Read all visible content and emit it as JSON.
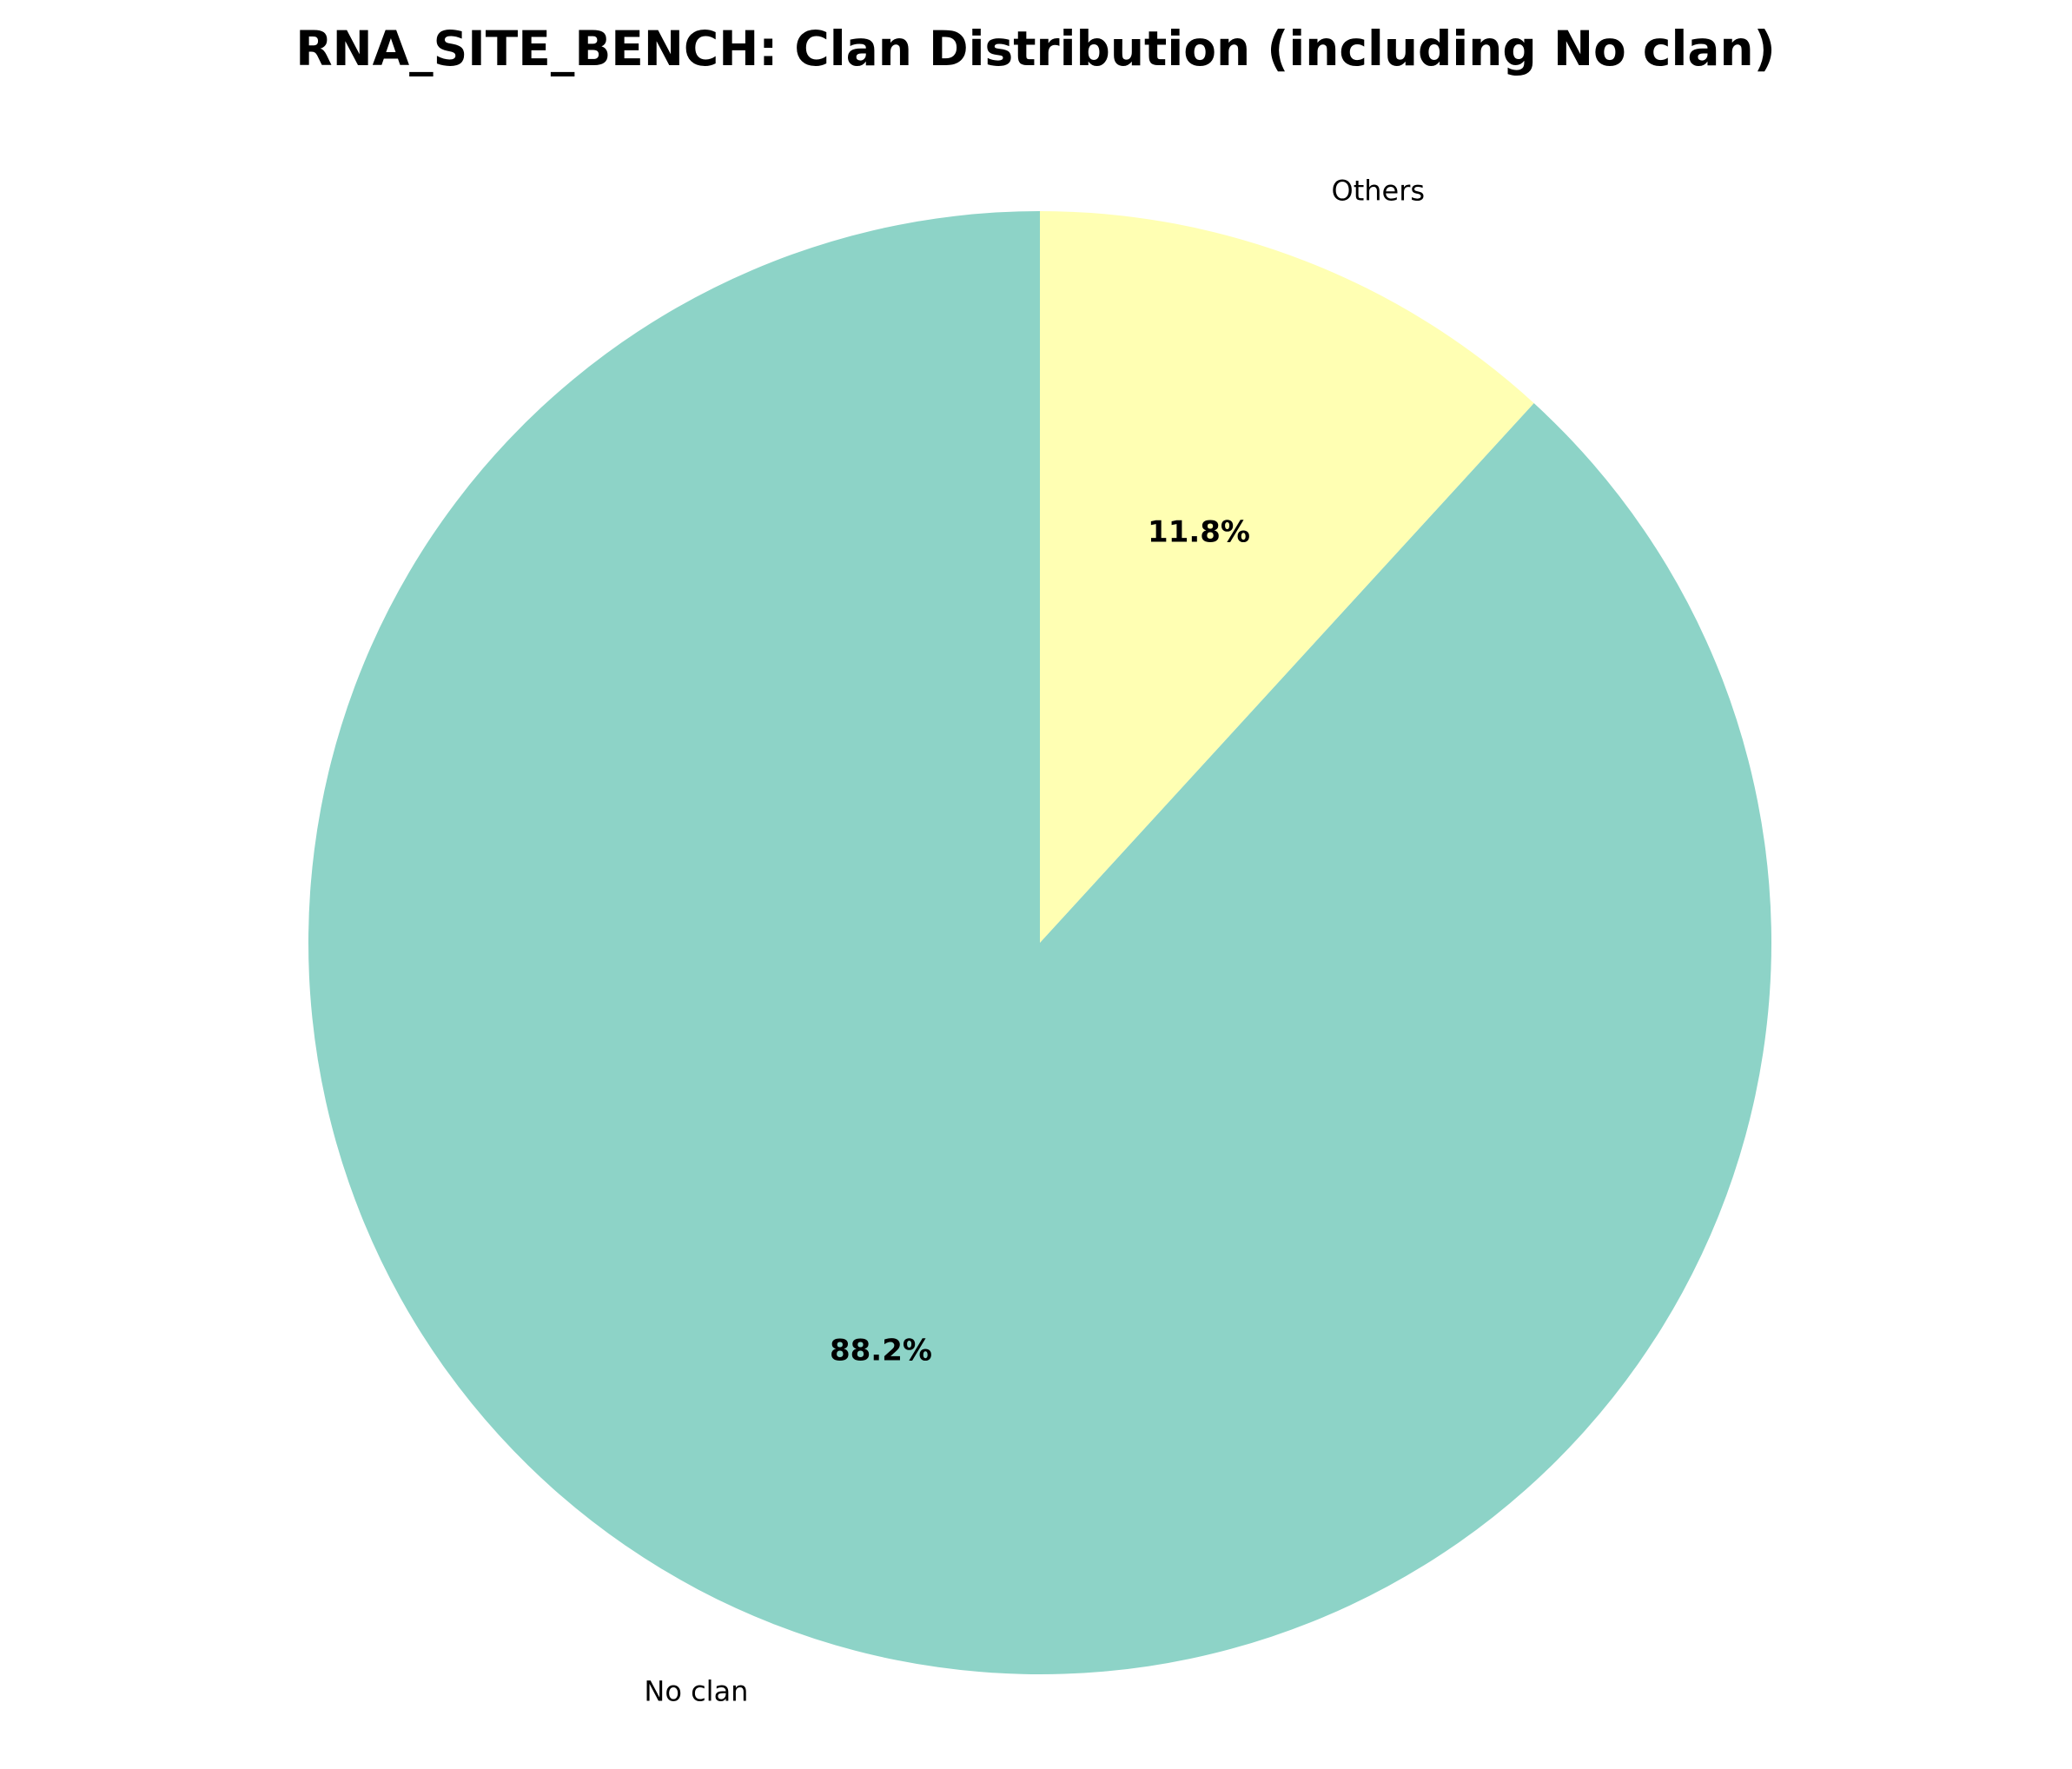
{
  "chart_data": {
    "type": "pie",
    "title": "RNA_SITE_BENCH: Clan Distribution (including No clan)",
    "categories": [
      "No clan",
      "Others"
    ],
    "values": [
      88.2,
      11.8
    ],
    "percent_labels": [
      "88.2%",
      "11.8%"
    ],
    "colors": [
      "#8dd3c7",
      "#ffffb3"
    ],
    "start_angle_deg": 90,
    "direction": "counterclockwise",
    "legend": "none"
  }
}
